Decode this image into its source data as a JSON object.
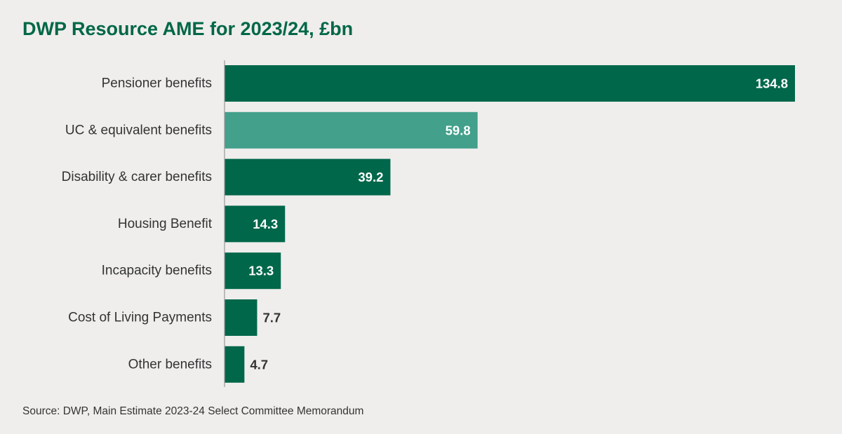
{
  "chart_data": {
    "type": "bar",
    "orientation": "horizontal",
    "title": "DWP Resource AME for 2023/24, £bn",
    "source": "Source: DWP, Main Estimate 2023-24 Select Committee Memorandum",
    "categories": [
      "Pensioner benefits",
      "UC & equivalent benefits",
      "Disability & carer benefits",
      "Housing Benefit",
      "Incapacity benefits",
      "Cost of Living Payments",
      "Other benefits"
    ],
    "values": [
      134.8,
      59.8,
      39.2,
      14.3,
      13.3,
      7.7,
      4.7
    ],
    "value_labels": [
      "134.8",
      "59.8",
      "39.2",
      "14.3",
      "13.3",
      "7.7",
      "4.7"
    ],
    "bar_colors": [
      "#00674a",
      "#42a08b",
      "#00674a",
      "#00674a",
      "#00674a",
      "#00674a",
      "#00674a"
    ],
    "label_inside_colors": "#ffffff",
    "label_outside_color": "#333333",
    "axis_color": "#999999",
    "xlim": [
      0,
      134.8
    ],
    "grid": false,
    "legend": "none"
  }
}
